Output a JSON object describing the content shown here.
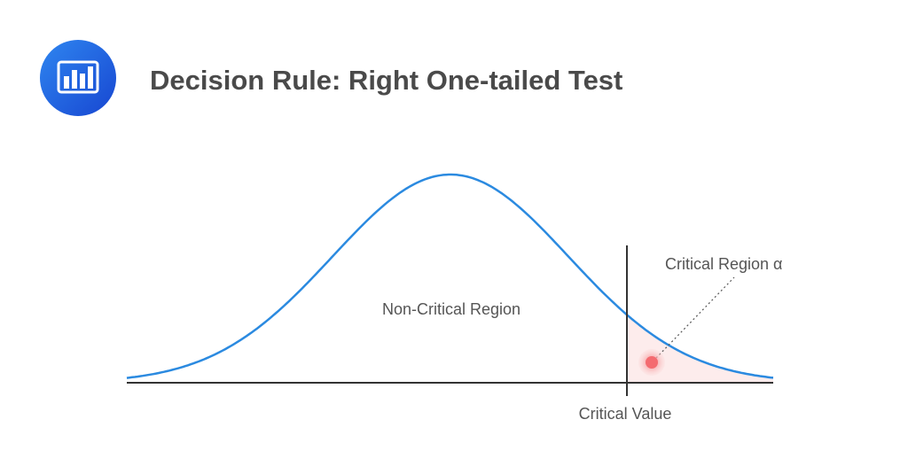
{
  "header": {
    "title": "Decision Rule: Right One-tailed Test"
  },
  "labels": {
    "non_critical": "Non-Critical Region",
    "critical_region": "Critical Region α",
    "critical_value": "Critical Value"
  }
}
